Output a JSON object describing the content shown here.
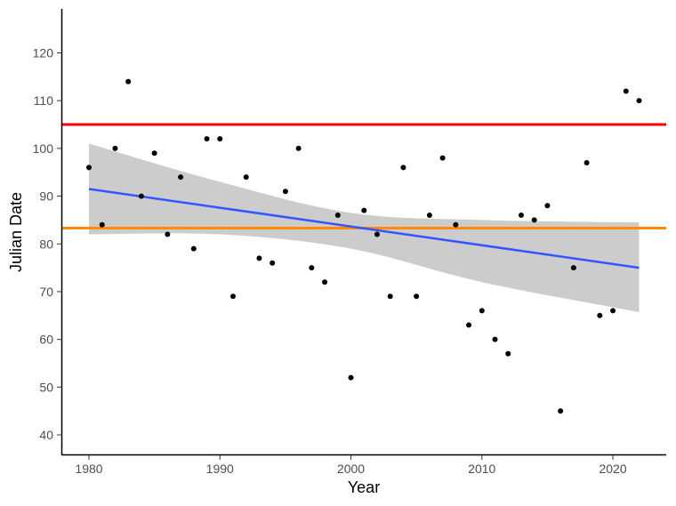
{
  "chart_data": {
    "type": "scatter",
    "title": "",
    "xlabel": "Year",
    "ylabel": "Julian Date",
    "xlim": [
      1978,
      2024
    ],
    "ylim": [
      36,
      130
    ],
    "x_ticks": [
      "1980",
      "1990",
      "2000",
      "2010",
      "2020"
    ],
    "y_ticks": [
      "40",
      "50",
      "60",
      "70",
      "80",
      "90",
      "100",
      "110",
      "120"
    ],
    "grid": false,
    "legend": "none",
    "points": [
      {
        "x": 1980,
        "y": 96
      },
      {
        "x": 1981,
        "y": 84
      },
      {
        "x": 1982,
        "y": 100
      },
      {
        "x": 1983,
        "y": 114
      },
      {
        "x": 1984,
        "y": 90
      },
      {
        "x": 1985,
        "y": 99
      },
      {
        "x": 1986,
        "y": 82
      },
      {
        "x": 1987,
        "y": 94
      },
      {
        "x": 1988,
        "y": 79
      },
      {
        "x": 1989,
        "y": 102
      },
      {
        "x": 1990,
        "y": 102
      },
      {
        "x": 1991,
        "y": 69
      },
      {
        "x": 1992,
        "y": 94
      },
      {
        "x": 1993,
        "y": 77
      },
      {
        "x": 1994,
        "y": 76
      },
      {
        "x": 1995,
        "y": 91
      },
      {
        "x": 1996,
        "y": 100
      },
      {
        "x": 1997,
        "y": 75
      },
      {
        "x": 1998,
        "y": 72
      },
      {
        "x": 1999,
        "y": 86
      },
      {
        "x": 2000,
        "y": 52
      },
      {
        "x": 2001,
        "y": 87
      },
      {
        "x": 2002,
        "y": 82
      },
      {
        "x": 2003,
        "y": 69
      },
      {
        "x": 2004,
        "y": 96
      },
      {
        "x": 2005,
        "y": 69
      },
      {
        "x": 2006,
        "y": 86
      },
      {
        "x": 2007,
        "y": 98
      },
      {
        "x": 2008,
        "y": 84
      },
      {
        "x": 2009,
        "y": 63
      },
      {
        "x": 2010,
        "y": 66
      },
      {
        "x": 2011,
        "y": 60
      },
      {
        "x": 2012,
        "y": 57
      },
      {
        "x": 2013,
        "y": 86
      },
      {
        "x": 2014,
        "y": 85
      },
      {
        "x": 2015,
        "y": 88
      },
      {
        "x": 2016,
        "y": 45
      },
      {
        "x": 2017,
        "y": 75
      },
      {
        "x": 2018,
        "y": 97
      },
      {
        "x": 2019,
        "y": 65
      },
      {
        "x": 2020,
        "y": 66
      },
      {
        "x": 2021,
        "y": 112
      },
      {
        "x": 2022,
        "y": 110
      }
    ],
    "trend_line": {
      "x": [
        1980,
        2022
      ],
      "y": [
        91.5,
        75.0
      ],
      "color": "#3355ff"
    },
    "confidence_band": {
      "x": [
        1980,
        1990,
        2000,
        2010,
        2022
      ],
      "upper": [
        101.0,
        93.0,
        86.5,
        85.0,
        84.5
      ],
      "lower": [
        82.0,
        82.0,
        79.0,
        72.0,
        65.7
      ],
      "color": "#cccccc"
    },
    "reference_lines": [
      {
        "y": 105,
        "color": "#ff0000"
      },
      {
        "y": 83.3,
        "color": "#ff8c00"
      }
    ],
    "point_color": "#000000"
  }
}
